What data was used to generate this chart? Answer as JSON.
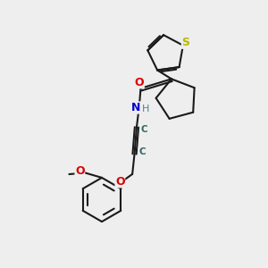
{
  "bg_color": "#eeeeee",
  "line_color": "#1a1a1a",
  "S_color": "#b8b800",
  "N_color": "#0000cc",
  "O_color": "#dd0000",
  "H_color": "#448888",
  "C_color": "#336666",
  "line_width": 1.5,
  "figsize": [
    3.0,
    3.0
  ],
  "dpi": 100,
  "xlim": [
    0,
    10
  ],
  "ylim": [
    0,
    10
  ]
}
